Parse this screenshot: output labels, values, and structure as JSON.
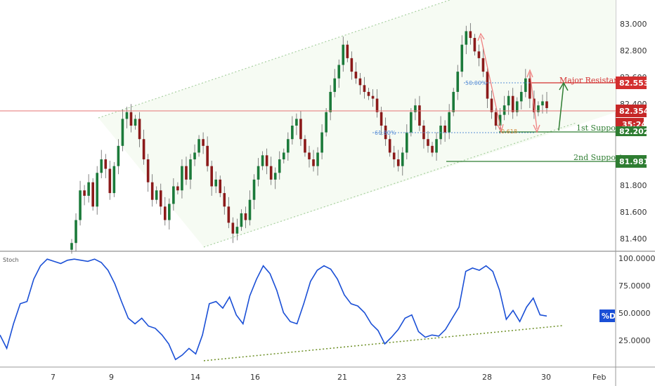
{
  "chart_data": [
    {
      "type": "candlestick",
      "panel": "price",
      "ylim": [
        81.3,
        83.1
      ],
      "y_ticks": [
        "83.000",
        "82.800",
        "82.600",
        "82.400",
        "81.800",
        "81.600",
        "81.400"
      ],
      "x_ticks": [
        "7",
        "9",
        "14",
        "16",
        "21",
        "23",
        "28",
        "30",
        "Feb"
      ],
      "colors": {
        "up": "#1b7a3a",
        "down": "#8b1a1a",
        "channel": "#a8d0a0",
        "resistance": "#d32f2f",
        "support": "#2e7d32",
        "price_line": "#e57373",
        "fib": "#5b8fd6"
      },
      "current_price": {
        "label": "82.354",
        "countdown": "35:24",
        "value": 82.354
      },
      "levels": [
        {
          "name": "Major Resistance",
          "value": 82.553,
          "label": "82.553",
          "color": "#d32f2f"
        },
        {
          "name": "1st Support",
          "value": 82.202,
          "label": "82.202",
          "color": "#2e7d32"
        },
        {
          "name": "2nd Support",
          "value": 81.981,
          "label": "81.981",
          "color": "#2e7d32"
        }
      ],
      "fib_labels": [
        "50.00%",
        "61.80%",
        "0.618"
      ],
      "candles_close": [
        81.33,
        81.5,
        81.72,
        81.68,
        81.78,
        81.6,
        81.85,
        81.95,
        81.88,
        81.7,
        81.9,
        82.05,
        82.25,
        82.3,
        82.2,
        82.25,
        82.1,
        81.95,
        81.78,
        81.65,
        81.72,
        81.6,
        81.5,
        81.62,
        81.75,
        81.72,
        81.9,
        81.8,
        81.95,
        82.0,
        82.1,
        82.05,
        81.9,
        81.75,
        81.8,
        81.7,
        81.6,
        81.48,
        81.4,
        81.45,
        81.55,
        81.5,
        81.65,
        81.8,
        81.9,
        81.98,
        81.9,
        81.8,
        81.85,
        81.95,
        82.0,
        82.1,
        82.2,
        82.25,
        82.1,
        82.0,
        81.95,
        81.9,
        82.0,
        82.15,
        82.3,
        82.45,
        82.55,
        82.65,
        82.8,
        82.7,
        82.6,
        82.55,
        82.5,
        82.45,
        82.42,
        82.4,
        82.3,
        82.2,
        82.1,
        82.0,
        81.95,
        81.9,
        82.0,
        82.15,
        82.3,
        82.35,
        82.2,
        82.1,
        82.05,
        82.0,
        82.1,
        82.2,
        82.15,
        82.3,
        82.45,
        82.6,
        82.8,
        82.9,
        82.85,
        82.75,
        82.7,
        82.6,
        82.4,
        82.3,
        82.2,
        82.28,
        82.35,
        82.42,
        82.3,
        82.38,
        82.45,
        82.55,
        82.4,
        82.3,
        82.35,
        82.38,
        82.33
      ]
    },
    {
      "type": "line",
      "panel": "stochastic",
      "title": "Stoch",
      "legend": "%D",
      "ylim": [
        0,
        100
      ],
      "y_ticks": [
        "100.0000",
        "75.0000",
        "50.0000",
        "25.0000"
      ],
      "series": [
        {
          "name": "%D",
          "color": "#1a4fd6",
          "values": [
            30,
            18,
            40,
            58,
            60,
            80,
            92,
            98,
            96,
            94,
            97,
            98,
            97,
            96,
            98,
            95,
            88,
            76,
            60,
            45,
            40,
            45,
            38,
            36,
            30,
            22,
            8,
            12,
            18,
            13,
            30,
            58,
            60,
            54,
            64,
            48,
            40,
            65,
            80,
            92,
            85,
            70,
            50,
            42,
            40,
            58,
            78,
            88,
            92,
            89,
            80,
            66,
            58,
            56,
            50,
            40,
            34,
            22,
            28,
            35,
            45,
            48,
            33,
            28,
            30,
            29,
            35,
            45,
            55,
            87,
            90,
            88,
            92,
            87,
            70,
            44,
            52,
            42,
            55,
            63,
            48,
            47
          ]
        }
      ],
      "trendline": {
        "from": 8,
        "to": 38,
        "color": "#6b8e23"
      }
    }
  ]
}
